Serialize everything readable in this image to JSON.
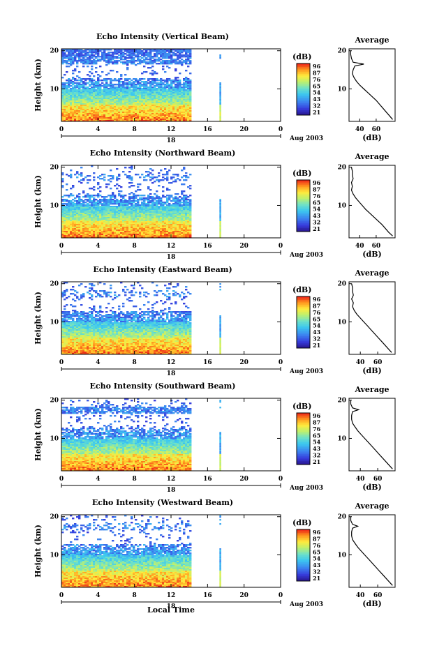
{
  "figure": {
    "date_label": "Aug 2003",
    "day_label": "18",
    "xlabel": "Local Time",
    "ylabel": "Height (km)",
    "colorbar_unit": "(dB)",
    "avg_title": "Average",
    "avg_xlabel": "(dB)"
  },
  "chart_data": [
    {
      "type": "heatmap",
      "title": "Echo Intensity (Vertical Beam)",
      "x_ticks": [
        "0",
        "4",
        "8",
        "12",
        "16",
        "20",
        "0"
      ],
      "y_ticks": [
        "20",
        "10"
      ],
      "xlim": [
        0,
        24
      ],
      "ylim": [
        1.5,
        20.5
      ],
      "data_end_hour": 14.1,
      "isolated_profile_hour": 17.3,
      "colorbar": {
        "min": 21,
        "max": 96,
        "ticks": [
          "96",
          "87",
          "76",
          "65",
          "54",
          "43",
          "32",
          "21"
        ]
      },
      "average_profile": {
        "x_ticks": [
          "40",
          "60"
        ],
        "y_ticks": [
          "20",
          "10"
        ],
        "xlim": [
          27,
          83
        ],
        "height_km": [
          2,
          3,
          4,
          5,
          6,
          7,
          8,
          9,
          10,
          11,
          12,
          13,
          14,
          15,
          16,
          16.5,
          17,
          18,
          19,
          20
        ],
        "db": [
          80,
          76,
          72,
          68,
          64,
          60,
          55,
          50,
          45,
          40,
          36,
          33,
          31,
          32,
          34,
          45,
          32,
          30,
          29,
          29
        ]
      }
    },
    {
      "type": "heatmap",
      "title": "Echo Intensity (Northward Beam)",
      "x_ticks": [
        "0",
        "4",
        "8",
        "12",
        "16",
        "20",
        "0"
      ],
      "y_ticks": [
        "20",
        "10"
      ],
      "xlim": [
        0,
        24
      ],
      "ylim": [
        1.5,
        20.5
      ],
      "data_end_hour": 14.1,
      "isolated_profile_hour": 17.3,
      "colorbar": {
        "min": 21,
        "max": 96,
        "ticks": [
          "96",
          "87",
          "76",
          "65",
          "54",
          "43",
          "32",
          "21"
        ]
      },
      "average_profile": {
        "x_ticks": [
          "40",
          "60"
        ],
        "y_ticks": [
          "20",
          "10"
        ],
        "xlim": [
          27,
          83
        ],
        "height_km": [
          2,
          3,
          4,
          5,
          6,
          7,
          8,
          9,
          10,
          11,
          12,
          13,
          14,
          15,
          16,
          17,
          18,
          19,
          20
        ],
        "db": [
          80,
          75,
          71,
          67,
          62,
          57,
          52,
          47,
          43,
          39,
          35,
          32,
          30,
          31,
          30,
          32,
          31,
          31,
          30
        ]
      }
    },
    {
      "type": "heatmap",
      "title": "Echo Intensity (Eastward Beam)",
      "x_ticks": [
        "0",
        "4",
        "8",
        "12",
        "16",
        "20",
        "0"
      ],
      "y_ticks": [
        "20",
        "10"
      ],
      "xlim": [
        0,
        24
      ],
      "ylim": [
        1.5,
        20.5
      ],
      "data_end_hour": 14.1,
      "isolated_profile_hour": 17.3,
      "colorbar": {
        "min": 21,
        "max": 96,
        "ticks": [
          "96",
          "87",
          "76",
          "65",
          "54",
          "43",
          "32",
          "21"
        ]
      },
      "average_profile": {
        "x_ticks": [
          "40",
          "60"
        ],
        "y_ticks": [
          "20",
          "10"
        ],
        "xlim": [
          27,
          80
        ],
        "height_km": [
          2,
          3,
          4,
          5,
          6,
          7,
          8,
          9,
          10,
          11,
          12,
          13,
          14,
          15,
          16,
          17,
          18,
          19,
          20
        ],
        "db": [
          76,
          72,
          68,
          64,
          60,
          56,
          52,
          48,
          44,
          40,
          36,
          33,
          31,
          32,
          30,
          32,
          31,
          31,
          30
        ]
      }
    },
    {
      "type": "heatmap",
      "title": "Echo Intensity (Southward Beam)",
      "x_ticks": [
        "0",
        "4",
        "8",
        "12",
        "16",
        "20",
        "0"
      ],
      "y_ticks": [
        "20",
        "10"
      ],
      "xlim": [
        0,
        24
      ],
      "ylim": [
        1.5,
        20.5
      ],
      "data_end_hour": 14.1,
      "isolated_profile_hour": 17.3,
      "colorbar": {
        "min": 21,
        "max": 96,
        "ticks": [
          "96",
          "87",
          "76",
          "65",
          "54",
          "43",
          "32",
          "21"
        ]
      },
      "average_profile": {
        "x_ticks": [
          "40",
          "60"
        ],
        "y_ticks": [
          "20",
          "10"
        ],
        "xlim": [
          27,
          80
        ],
        "height_km": [
          2,
          3,
          4,
          5,
          6,
          7,
          8,
          9,
          10,
          11,
          12,
          13,
          14,
          15,
          16,
          17,
          17.5,
          18,
          19,
          20
        ],
        "db": [
          77,
          73,
          69,
          65,
          61,
          57,
          53,
          49,
          45,
          41,
          37,
          34,
          31,
          30,
          30,
          31,
          38,
          31,
          29,
          29
        ]
      }
    },
    {
      "type": "heatmap",
      "title": "Echo Intensity (Westward Beam)",
      "x_ticks": [
        "0",
        "4",
        "8",
        "12",
        "16",
        "20",
        "0"
      ],
      "y_ticks": [
        "20",
        "10"
      ],
      "xlim": [
        0,
        24
      ],
      "ylim": [
        1.5,
        20.5
      ],
      "data_end_hour": 14.1,
      "isolated_profile_hour": 17.3,
      "colorbar": {
        "min": 21,
        "max": 96,
        "ticks": [
          "96",
          "87",
          "76",
          "65",
          "54",
          "43",
          "32",
          "21"
        ]
      },
      "average_profile": {
        "x_ticks": [
          "40",
          "60"
        ],
        "y_ticks": [
          "20",
          "10"
        ],
        "xlim": [
          27,
          80
        ],
        "height_km": [
          2,
          3,
          4,
          5,
          6,
          7,
          8,
          9,
          10,
          11,
          12,
          13,
          14,
          15,
          16,
          17,
          17.5,
          18,
          19,
          20
        ],
        "db": [
          77,
          73,
          69,
          65,
          61,
          57,
          53,
          49,
          45,
          41,
          37,
          34,
          31,
          30,
          30,
          31,
          37,
          31,
          29,
          29
        ]
      }
    }
  ]
}
